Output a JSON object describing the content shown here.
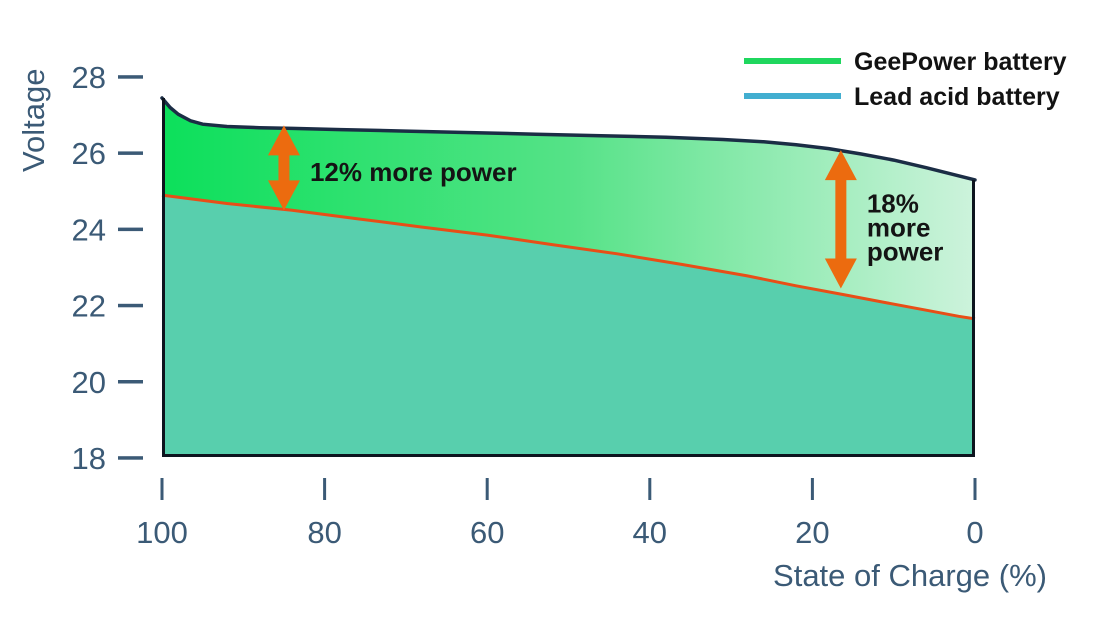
{
  "chart_data": {
    "type": "area",
    "title": "",
    "xlabel": "State of Charge (%)",
    "ylabel": "Voltage",
    "xlim": [
      100,
      0
    ],
    "ylim": [
      18,
      28
    ],
    "x_ticks": [
      100,
      80,
      60,
      40,
      20,
      0
    ],
    "y_ticks": [
      28,
      26,
      24,
      22,
      20,
      18
    ],
    "grid": false,
    "legend_position": "top-right",
    "axis_color": "#3b5a76",
    "border_color": "#0d141e",
    "arrow_color": "#ec6b0f",
    "gradient": {
      "from": "#0ce05b",
      "mid": "#55e287",
      "to": "#cdf3dc"
    },
    "series": [
      {
        "name": "GeePower battery",
        "color": "#1fd75e",
        "line_color": "#1b2d45",
        "fill": "green-gradient",
        "points": [
          [
            100,
            27.45
          ],
          [
            99,
            27.2
          ],
          [
            98,
            27.02
          ],
          [
            96.5,
            26.85
          ],
          [
            95,
            26.76
          ],
          [
            92,
            26.7
          ],
          [
            88,
            26.67
          ],
          [
            84,
            26.65
          ],
          [
            78,
            26.62
          ],
          [
            70,
            26.58
          ],
          [
            62,
            26.54
          ],
          [
            54,
            26.5
          ],
          [
            46,
            26.46
          ],
          [
            38,
            26.42
          ],
          [
            31,
            26.36
          ],
          [
            26,
            26.3
          ],
          [
            22,
            26.22
          ],
          [
            18,
            26.12
          ],
          [
            14,
            25.98
          ],
          [
            10,
            25.82
          ],
          [
            6,
            25.62
          ],
          [
            3,
            25.46
          ],
          [
            0,
            25.3
          ]
        ]
      },
      {
        "name": "Lead acid battery",
        "color": "#42aed0",
        "line_color": "#e84e17",
        "fill": "#58cfad",
        "points": [
          [
            100,
            24.9
          ],
          [
            92,
            24.68
          ],
          [
            84,
            24.5
          ],
          [
            76,
            24.28
          ],
          [
            68,
            24.06
          ],
          [
            60,
            23.85
          ],
          [
            52,
            23.6
          ],
          [
            44,
            23.36
          ],
          [
            36,
            23.08
          ],
          [
            28,
            22.78
          ],
          [
            22,
            22.52
          ],
          [
            16,
            22.28
          ],
          [
            11,
            22.08
          ],
          [
            6,
            21.88
          ],
          [
            2,
            21.72
          ],
          [
            0,
            21.65
          ]
        ]
      }
    ],
    "annotations": [
      {
        "text": "12% more power",
        "label_lines": [
          "12% more power"
        ],
        "soc": 85,
        "v_top": 26.73,
        "v_bottom": 24.5,
        "label_dy": 5
      },
      {
        "text": "18% more power",
        "label_lines": [
          "18%",
          "more",
          "power"
        ],
        "soc": 16.5,
        "v_top": 26.08,
        "v_bottom": 22.45,
        "label_dy": 9
      }
    ]
  }
}
